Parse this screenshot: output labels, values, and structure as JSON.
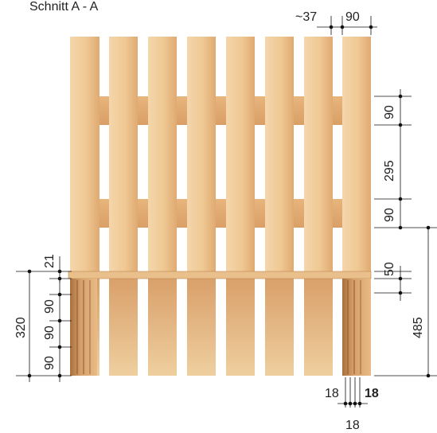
{
  "title": "Schnitt A - A",
  "colors": {
    "wood_light": "#f0cc9c",
    "wood_mid": "#e5b37c",
    "wood_dark": "#c98e57",
    "wood_edge": "#b77c47",
    "rail_shadow": "#dba470",
    "dimension_line": "#111111"
  },
  "dimensions": {
    "top_gap": "~37",
    "top_picket_width": "90",
    "rail_upper": "90",
    "rail_spacing": "295",
    "rail_lower": "90",
    "seat_thickness": "50",
    "overall_right": "485",
    "seat_offset": "21",
    "leg_height": "320",
    "leg_part_a": "90",
    "leg_part_b": "90",
    "leg_part_c": "90",
    "bottom_a": "18",
    "bottom_b": "18",
    "bottom_c": "18"
  }
}
